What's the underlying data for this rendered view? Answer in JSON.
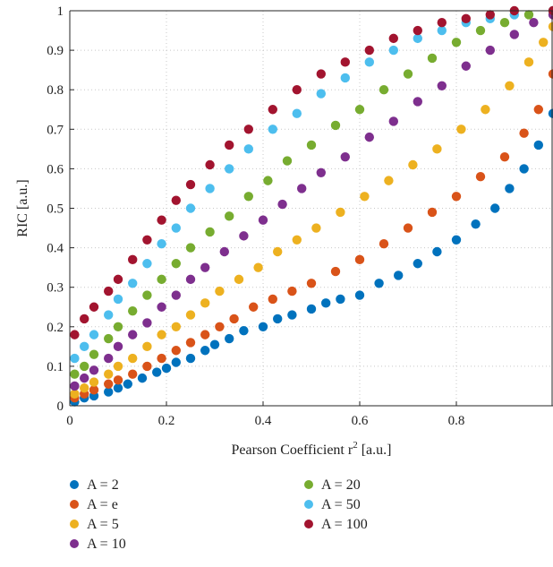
{
  "chart_data": {
    "type": "scatter",
    "title": "",
    "xlabel": "Pearson Coefficient r",
    "xlabel_sup": "2",
    "xlabel_unit": "[a.u.]",
    "ylabel": "RIC [a.u.]",
    "xlim": [
      0,
      1
    ],
    "ylim": [
      0,
      1
    ],
    "xticks": [
      "0",
      "0.2",
      "0.4",
      "0.6",
      "0.8"
    ],
    "yticks": [
      "0",
      "0.1",
      "0.2",
      "0.3",
      "0.4",
      "0.5",
      "0.6",
      "0.7",
      "0.8",
      "0.9",
      "1"
    ],
    "grid": "dotted",
    "legend_position": "below",
    "series": [
      {
        "name": "A = 2",
        "color": "#0072BD",
        "points": [
          [
            0.01,
            0.01
          ],
          [
            0.03,
            0.02
          ],
          [
            0.05,
            0.025
          ],
          [
            0.08,
            0.035
          ],
          [
            0.1,
            0.045
          ],
          [
            0.12,
            0.055
          ],
          [
            0.15,
            0.07
          ],
          [
            0.18,
            0.085
          ],
          [
            0.2,
            0.095
          ],
          [
            0.22,
            0.11
          ],
          [
            0.25,
            0.12
          ],
          [
            0.28,
            0.14
          ],
          [
            0.3,
            0.155
          ],
          [
            0.33,
            0.17
          ],
          [
            0.36,
            0.19
          ],
          [
            0.4,
            0.2
          ],
          [
            0.43,
            0.22
          ],
          [
            0.46,
            0.23
          ],
          [
            0.5,
            0.245
          ],
          [
            0.53,
            0.26
          ],
          [
            0.56,
            0.27
          ],
          [
            0.6,
            0.28
          ],
          [
            0.64,
            0.31
          ],
          [
            0.68,
            0.33
          ],
          [
            0.72,
            0.36
          ],
          [
            0.76,
            0.39
          ],
          [
            0.8,
            0.42
          ],
          [
            0.84,
            0.46
          ],
          [
            0.88,
            0.5
          ],
          [
            0.91,
            0.55
          ],
          [
            0.94,
            0.6
          ],
          [
            0.97,
            0.66
          ],
          [
            1.0,
            0.74
          ]
        ]
      },
      {
        "name": "A = e",
        "color": "#D95319",
        "points": [
          [
            0.01,
            0.02
          ],
          [
            0.03,
            0.03
          ],
          [
            0.05,
            0.04
          ],
          [
            0.08,
            0.055
          ],
          [
            0.1,
            0.065
          ],
          [
            0.13,
            0.08
          ],
          [
            0.16,
            0.1
          ],
          [
            0.19,
            0.12
          ],
          [
            0.22,
            0.14
          ],
          [
            0.25,
            0.16
          ],
          [
            0.28,
            0.18
          ],
          [
            0.31,
            0.2
          ],
          [
            0.34,
            0.22
          ],
          [
            0.38,
            0.25
          ],
          [
            0.42,
            0.27
          ],
          [
            0.46,
            0.29
          ],
          [
            0.5,
            0.31
          ],
          [
            0.55,
            0.34
          ],
          [
            0.6,
            0.37
          ],
          [
            0.65,
            0.41
          ],
          [
            0.7,
            0.45
          ],
          [
            0.75,
            0.49
          ],
          [
            0.8,
            0.53
          ],
          [
            0.85,
            0.58
          ],
          [
            0.9,
            0.63
          ],
          [
            0.94,
            0.69
          ],
          [
            0.97,
            0.75
          ],
          [
            1.0,
            0.84
          ]
        ]
      },
      {
        "name": "A = 5",
        "color": "#EDB120",
        "points": [
          [
            0.01,
            0.03
          ],
          [
            0.03,
            0.045
          ],
          [
            0.05,
            0.06
          ],
          [
            0.08,
            0.08
          ],
          [
            0.1,
            0.1
          ],
          [
            0.13,
            0.12
          ],
          [
            0.16,
            0.15
          ],
          [
            0.19,
            0.18
          ],
          [
            0.22,
            0.2
          ],
          [
            0.25,
            0.23
          ],
          [
            0.28,
            0.26
          ],
          [
            0.31,
            0.29
          ],
          [
            0.35,
            0.32
          ],
          [
            0.39,
            0.35
          ],
          [
            0.43,
            0.39
          ],
          [
            0.47,
            0.42
          ],
          [
            0.51,
            0.45
          ],
          [
            0.56,
            0.49
          ],
          [
            0.61,
            0.53
          ],
          [
            0.66,
            0.57
          ],
          [
            0.71,
            0.61
          ],
          [
            0.76,
            0.65
          ],
          [
            0.81,
            0.7
          ],
          [
            0.86,
            0.75
          ],
          [
            0.91,
            0.81
          ],
          [
            0.95,
            0.87
          ],
          [
            0.98,
            0.92
          ],
          [
            1.0,
            0.96
          ]
        ]
      },
      {
        "name": "A = 10",
        "color": "#7E2F8E",
        "points": [
          [
            0.01,
            0.05
          ],
          [
            0.03,
            0.07
          ],
          [
            0.05,
            0.09
          ],
          [
            0.08,
            0.12
          ],
          [
            0.1,
            0.15
          ],
          [
            0.13,
            0.18
          ],
          [
            0.16,
            0.21
          ],
          [
            0.19,
            0.25
          ],
          [
            0.22,
            0.28
          ],
          [
            0.25,
            0.32
          ],
          [
            0.28,
            0.35
          ],
          [
            0.32,
            0.39
          ],
          [
            0.36,
            0.43
          ],
          [
            0.4,
            0.47
          ],
          [
            0.44,
            0.51
          ],
          [
            0.48,
            0.55
          ],
          [
            0.52,
            0.59
          ],
          [
            0.57,
            0.63
          ],
          [
            0.62,
            0.68
          ],
          [
            0.67,
            0.72
          ],
          [
            0.72,
            0.77
          ],
          [
            0.77,
            0.81
          ],
          [
            0.82,
            0.86
          ],
          [
            0.87,
            0.9
          ],
          [
            0.92,
            0.94
          ],
          [
            0.96,
            0.97
          ],
          [
            1.0,
            0.99
          ]
        ]
      },
      {
        "name": "A = 20",
        "color": "#77AC30",
        "points": [
          [
            0.01,
            0.08
          ],
          [
            0.03,
            0.1
          ],
          [
            0.05,
            0.13
          ],
          [
            0.08,
            0.17
          ],
          [
            0.1,
            0.2
          ],
          [
            0.13,
            0.24
          ],
          [
            0.16,
            0.28
          ],
          [
            0.19,
            0.32
          ],
          [
            0.22,
            0.36
          ],
          [
            0.25,
            0.4
          ],
          [
            0.29,
            0.44
          ],
          [
            0.33,
            0.48
          ],
          [
            0.37,
            0.53
          ],
          [
            0.41,
            0.57
          ],
          [
            0.45,
            0.62
          ],
          [
            0.5,
            0.66
          ],
          [
            0.55,
            0.71
          ],
          [
            0.6,
            0.75
          ],
          [
            0.65,
            0.8
          ],
          [
            0.7,
            0.84
          ],
          [
            0.75,
            0.88
          ],
          [
            0.8,
            0.92
          ],
          [
            0.85,
            0.95
          ],
          [
            0.9,
            0.97
          ],
          [
            0.95,
            0.99
          ],
          [
            1.0,
            1.0
          ]
        ]
      },
      {
        "name": "A = 50",
        "color": "#4DBEEE",
        "points": [
          [
            0.01,
            0.12
          ],
          [
            0.03,
            0.15
          ],
          [
            0.05,
            0.18
          ],
          [
            0.08,
            0.23
          ],
          [
            0.1,
            0.27
          ],
          [
            0.13,
            0.31
          ],
          [
            0.16,
            0.36
          ],
          [
            0.19,
            0.41
          ],
          [
            0.22,
            0.45
          ],
          [
            0.25,
            0.5
          ],
          [
            0.29,
            0.55
          ],
          [
            0.33,
            0.6
          ],
          [
            0.37,
            0.65
          ],
          [
            0.42,
            0.7
          ],
          [
            0.47,
            0.74
          ],
          [
            0.52,
            0.79
          ],
          [
            0.57,
            0.83
          ],
          [
            0.62,
            0.87
          ],
          [
            0.67,
            0.9
          ],
          [
            0.72,
            0.93
          ],
          [
            0.77,
            0.95
          ],
          [
            0.82,
            0.97
          ],
          [
            0.87,
            0.98
          ],
          [
            0.92,
            0.99
          ],
          [
            1.0,
            1.0
          ]
        ]
      },
      {
        "name": "A = 100",
        "color": "#A2142F",
        "points": [
          [
            0.01,
            0.18
          ],
          [
            0.03,
            0.22
          ],
          [
            0.05,
            0.25
          ],
          [
            0.08,
            0.29
          ],
          [
            0.1,
            0.32
          ],
          [
            0.13,
            0.37
          ],
          [
            0.16,
            0.42
          ],
          [
            0.19,
            0.47
          ],
          [
            0.22,
            0.52
          ],
          [
            0.25,
            0.56
          ],
          [
            0.29,
            0.61
          ],
          [
            0.33,
            0.66
          ],
          [
            0.37,
            0.7
          ],
          [
            0.42,
            0.75
          ],
          [
            0.47,
            0.8
          ],
          [
            0.52,
            0.84
          ],
          [
            0.57,
            0.87
          ],
          [
            0.62,
            0.9
          ],
          [
            0.67,
            0.93
          ],
          [
            0.72,
            0.95
          ],
          [
            0.77,
            0.97
          ],
          [
            0.82,
            0.98
          ],
          [
            0.87,
            0.99
          ],
          [
            0.92,
            1.0
          ],
          [
            1.0,
            1.0
          ]
        ]
      }
    ]
  }
}
